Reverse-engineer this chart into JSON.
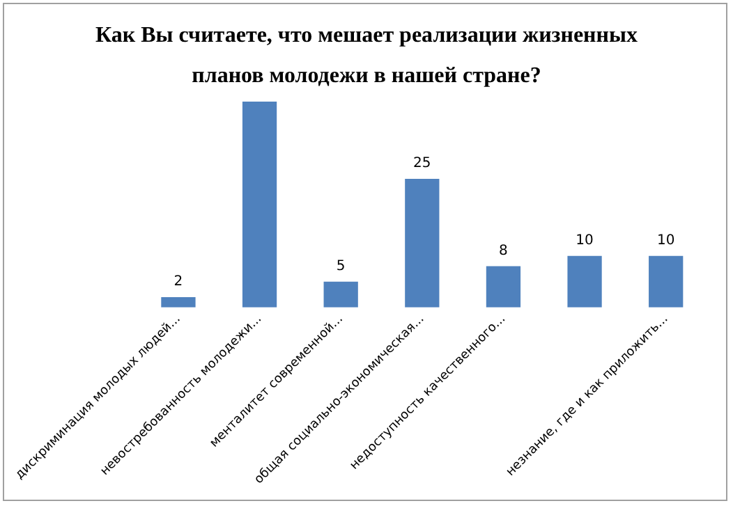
{
  "chart_data": {
    "type": "bar",
    "title": "Как Вы считаете, что мешает реализации жизненных планов молодежи в нашей стране?",
    "categories": [
      "дискриминация молодых людей...",
      "невостребованность молодежи...",
      "менталитет современной...",
      "общая социально-экономическая...",
      "недоступность качественного...",
      null,
      "незнание, где и как приложить..."
    ],
    "values": [
      2,
      40,
      5,
      25,
      8,
      10,
      10
    ],
    "value_labels": [
      "2",
      null,
      "5",
      "25",
      "8",
      "10",
      "10"
    ],
    "color": "#4f81bd",
    "ylim": [
      0,
      40
    ],
    "grid": false,
    "legend": false,
    "tick_labels": "x"
  }
}
